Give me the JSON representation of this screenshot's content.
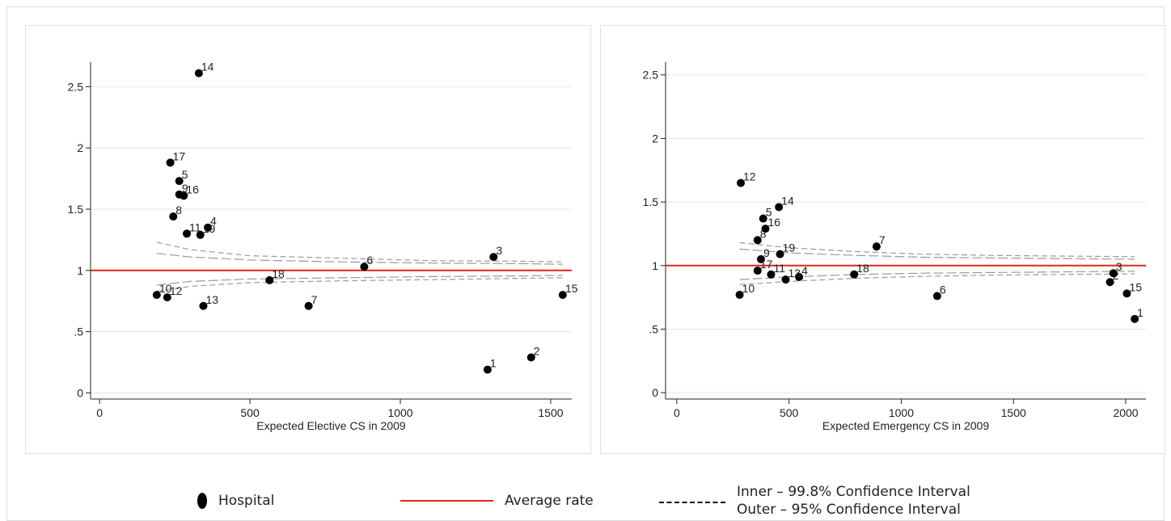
{
  "chart_data": [
    {
      "type": "scatter",
      "xlabel": "Expected Elective CS in 2009",
      "ylabel": "",
      "xlim": [
        -30,
        1570
      ],
      "ylim": [
        -0.05,
        2.7
      ],
      "xticks": [
        0,
        500,
        1000,
        1500
      ],
      "xtick_labels": [
        "0",
        "500",
        "1000",
        "1500"
      ],
      "yticks": [
        0,
        0.5,
        1,
        1.5,
        2,
        2.5
      ],
      "ytick_labels": [
        "0",
        ".5",
        "1",
        "1.5",
        "2",
        "2.5"
      ],
      "average_rate": 1,
      "points": [
        {
          "label": "1",
          "x": 1290,
          "y": 0.19
        },
        {
          "label": "2",
          "x": 1435,
          "y": 0.29
        },
        {
          "label": "3",
          "x": 1310,
          "y": 1.11
        },
        {
          "label": "4",
          "x": 360,
          "y": 1.35
        },
        {
          "label": "5",
          "x": 265,
          "y": 1.73
        },
        {
          "label": "6",
          "x": 880,
          "y": 1.03
        },
        {
          "label": "7",
          "x": 695,
          "y": 0.71
        },
        {
          "label": "8",
          "x": 245,
          "y": 1.44
        },
        {
          "label": "9",
          "x": 265,
          "y": 1.62
        },
        {
          "label": "10",
          "x": 190,
          "y": 0.8
        },
        {
          "label": "11",
          "x": 290,
          "y": 1.3
        },
        {
          "label": "12",
          "x": 225,
          "y": 0.78
        },
        {
          "label": "13",
          "x": 345,
          "y": 0.71
        },
        {
          "label": "14",
          "x": 330,
          "y": 2.61
        },
        {
          "label": "15",
          "x": 1540,
          "y": 0.8
        },
        {
          "label": "16",
          "x": 280,
          "y": 1.61
        },
        {
          "label": "17",
          "x": 235,
          "y": 1.88
        },
        {
          "label": "18",
          "x": 565,
          "y": 0.92
        },
        {
          "label": "19",
          "x": 335,
          "y": 1.29
        }
      ],
      "ci_x": [
        190,
        300,
        500,
        800,
        1100,
        1400,
        1540
      ],
      "ci_outer_upper": [
        1.23,
        1.17,
        1.12,
        1.1,
        1.08,
        1.075,
        1.07
      ],
      "ci_outer_lower": [
        0.83,
        0.87,
        0.9,
        0.915,
        0.925,
        0.935,
        0.94
      ],
      "ci_inner_upper": [
        1.14,
        1.11,
        1.085,
        1.07,
        1.06,
        1.055,
        1.05
      ],
      "ci_inner_lower": [
        0.88,
        0.91,
        0.93,
        0.94,
        0.95,
        0.955,
        0.96
      ],
      "grid": true
    },
    {
      "type": "scatter",
      "xlabel": "Expected Emergency CS in 2009",
      "ylabel": "",
      "xlim": [
        -50,
        2090
      ],
      "ylim": [
        -0.05,
        2.6
      ],
      "xticks": [
        0,
        500,
        1000,
        1500,
        2000
      ],
      "xtick_labels": [
        "0",
        "500",
        "1000",
        "1500",
        "2000"
      ],
      "yticks": [
        0,
        0.5,
        1,
        1.5,
        2,
        2.5
      ],
      "ytick_labels": [
        "0",
        ".5",
        "1",
        "1.5",
        "2",
        "2.5"
      ],
      "average_rate": 1,
      "points": [
        {
          "label": "1",
          "x": 2040,
          "y": 0.58
        },
        {
          "label": "2",
          "x": 1930,
          "y": 0.87
        },
        {
          "label": "3",
          "x": 1945,
          "y": 0.94
        },
        {
          "label": "4",
          "x": 545,
          "y": 0.91
        },
        {
          "label": "5",
          "x": 385,
          "y": 1.37
        },
        {
          "label": "6",
          "x": 1160,
          "y": 0.76
        },
        {
          "label": "7",
          "x": 890,
          "y": 1.15
        },
        {
          "label": "8",
          "x": 360,
          "y": 1.2
        },
        {
          "label": "9",
          "x": 375,
          "y": 1.05
        },
        {
          "label": "10",
          "x": 280,
          "y": 0.77
        },
        {
          "label": "11",
          "x": 420,
          "y": 0.93
        },
        {
          "label": "12",
          "x": 285,
          "y": 1.65
        },
        {
          "label": "13",
          "x": 485,
          "y": 0.89
        },
        {
          "label": "14",
          "x": 455,
          "y": 1.46
        },
        {
          "label": "15",
          "x": 2005,
          "y": 0.78
        },
        {
          "label": "16",
          "x": 395,
          "y": 1.29
        },
        {
          "label": "17",
          "x": 360,
          "y": 0.96
        },
        {
          "label": "18",
          "x": 790,
          "y": 0.93
        },
        {
          "label": "19",
          "x": 460,
          "y": 1.09
        }
      ],
      "ci_x": [
        280,
        500,
        800,
        1100,
        1400,
        1700,
        2040
      ],
      "ci_outer_upper": [
        1.18,
        1.14,
        1.11,
        1.09,
        1.08,
        1.075,
        1.07
      ],
      "ci_outer_lower": [
        0.85,
        0.875,
        0.9,
        0.915,
        0.925,
        0.93,
        0.935
      ],
      "ci_inner_upper": [
        1.13,
        1.1,
        1.08,
        1.065,
        1.06,
        1.055,
        1.05
      ],
      "ci_inner_lower": [
        0.89,
        0.91,
        0.93,
        0.94,
        0.945,
        0.95,
        0.955
      ],
      "grid": true
    }
  ],
  "colors": {
    "average_line": "#e0261b",
    "grid": "#d9ece9",
    "points": "#000000",
    "ci": "#9a9a9a"
  },
  "legend": {
    "hospital": "Hospital",
    "average": "Average rate",
    "ci_inner": "Inner – 99.8% Confidence Interval",
    "ci_outer": "Outer – 95% Confidence Interval"
  }
}
